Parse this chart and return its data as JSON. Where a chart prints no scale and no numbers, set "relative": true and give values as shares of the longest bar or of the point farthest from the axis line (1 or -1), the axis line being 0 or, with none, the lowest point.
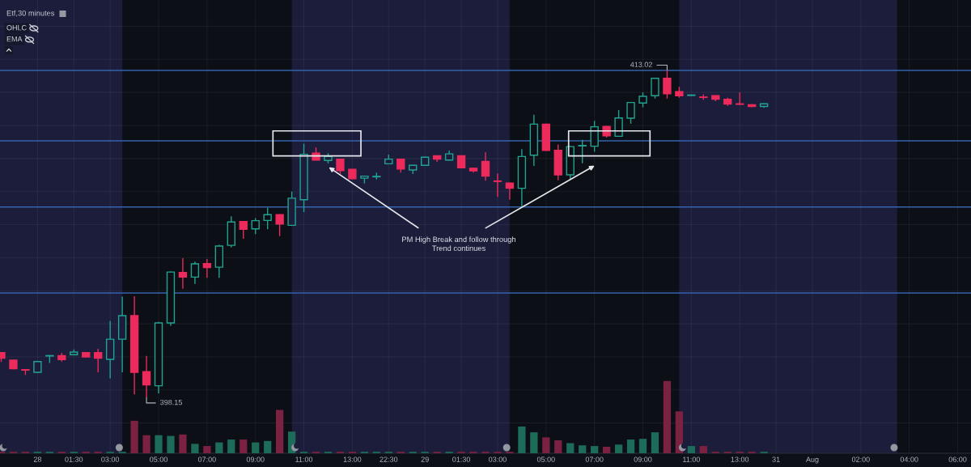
{
  "chart_data": [
    {
      "type": "candlestick",
      "title": "Etf,30 minutes",
      "categories": [
        null,
        null,
        null,
        "28",
        null,
        null,
        "01:30",
        null,
        null,
        "03:00",
        null,
        null,
        null,
        "05:00",
        null,
        null,
        null,
        "07:00",
        null,
        null,
        null,
        "09:00",
        null,
        null,
        null,
        "11:00",
        null,
        null,
        null,
        "13:00",
        null,
        null,
        "22:30",
        null,
        null,
        "29",
        null,
        null,
        "01:30",
        null,
        null,
        "03:00",
        null,
        null,
        null,
        "05:00",
        null,
        null,
        null,
        "07:00",
        null,
        null,
        null,
        "09:00",
        null,
        null,
        null,
        "11:00",
        null,
        null,
        null,
        "13:00",
        null,
        null,
        "31",
        null,
        null,
        "Aug",
        null,
        null,
        null,
        "02:00",
        null,
        null,
        null,
        "04:00",
        null,
        null,
        null,
        "06:00"
      ],
      "ohlc": [
        [
          400.19,
          400.2,
          399.77,
          399.94
        ],
        [
          399.85,
          399.87,
          399.44,
          399.46
        ],
        [
          399.42,
          399.43,
          399.18,
          399.4
        ],
        [
          399.3,
          399.82,
          399.27,
          399.79
        ],
        [
          400.04,
          400.07,
          399.73,
          400.06
        ],
        [
          400.06,
          400.18,
          399.79,
          399.88
        ],
        [
          400.1,
          400.34,
          400.08,
          400.22
        ],
        [
          400.19,
          400.21,
          399.98,
          400.0
        ],
        [
          400.19,
          400.37,
          399.3,
          399.94
        ],
        [
          399.89,
          401.63,
          399.03,
          400.8
        ],
        [
          400.8,
          402.73,
          399.3,
          401.87
        ],
        [
          401.87,
          402.75,
          398.3,
          399.3
        ],
        [
          399.33,
          400.04,
          398.15,
          398.73
        ],
        [
          398.69,
          401.59,
          398.35,
          401.54
        ],
        [
          401.54,
          403.87,
          401.41,
          403.85
        ],
        [
          403.83,
          404.48,
          403.09,
          403.62
        ],
        [
          403.62,
          404.32,
          403.31,
          404.22
        ],
        [
          404.23,
          404.44,
          403.59,
          404.05
        ],
        [
          404.07,
          405.08,
          403.59,
          405.03
        ],
        [
          405.06,
          406.38,
          404.96,
          406.12
        ],
        [
          406.14,
          406.16,
          405.36,
          405.79
        ],
        [
          405.81,
          406.3,
          405.57,
          406.18
        ],
        [
          406.19,
          406.77,
          405.79,
          406.45
        ],
        [
          406.45,
          406.47,
          405.48,
          406.03
        ],
        [
          405.97,
          407.5,
          405.94,
          407.2
        ],
        [
          407.13,
          409.67,
          406.57,
          409.19
        ],
        [
          409.24,
          409.5,
          408.91,
          408.93
        ],
        [
          408.91,
          409.24,
          408.78,
          409.09
        ],
        [
          408.97,
          408.99,
          408.3,
          408.45
        ],
        [
          408.51,
          408.53,
          408.06,
          408.08
        ],
        [
          408.11,
          408.22,
          407.87,
          408.2
        ],
        [
          408.17,
          408.36,
          408.05,
          408.19
        ],
        [
          408.76,
          409.18,
          408.74,
          408.97
        ],
        [
          408.97,
          408.99,
          408.36,
          408.52
        ],
        [
          408.48,
          408.71,
          408.3,
          408.69
        ],
        [
          408.69,
          409.08,
          408.67,
          409.06
        ],
        [
          409.12,
          409.14,
          408.85,
          408.97
        ],
        [
          408.93,
          409.36,
          408.91,
          409.21
        ],
        [
          409.12,
          409.14,
          408.56,
          408.58
        ],
        [
          408.56,
          408.58,
          408.36,
          408.44
        ],
        [
          408.87,
          409.28,
          407.99,
          408.2
        ],
        [
          407.98,
          408.32,
          407.26,
          407.96
        ],
        [
          407.89,
          407.91,
          407.13,
          407.65
        ],
        [
          407.65,
          409.43,
          406.83,
          409.09
        ],
        [
          409.15,
          410.99,
          408.66,
          410.56
        ],
        [
          410.56,
          410.58,
          409.35,
          409.37
        ],
        [
          409.37,
          409.64,
          408.01,
          408.26
        ],
        [
          408.26,
          409.56,
          408.05,
          409.54
        ],
        [
          409.57,
          409.85,
          408.78,
          409.59
        ],
        [
          409.56,
          410.71,
          409.31,
          410.44
        ],
        [
          410.46,
          410.48,
          409.95,
          410.03
        ],
        [
          410.01,
          411.2,
          409.99,
          410.84
        ],
        [
          410.83,
          411.56,
          410.58,
          411.54
        ],
        [
          411.52,
          412.0,
          411.32,
          411.82
        ],
        [
          411.85,
          412.66,
          411.72,
          412.64
        ],
        [
          412.64,
          413.02,
          411.72,
          411.94
        ],
        [
          412.03,
          412.25,
          411.76,
          411.85
        ],
        [
          411.86,
          411.9,
          411.84,
          411.88
        ],
        [
          411.79,
          411.91,
          411.66,
          411.77
        ],
        [
          411.85,
          411.87,
          411.6,
          411.69
        ],
        [
          411.69,
          411.76,
          411.39,
          411.47
        ],
        [
          411.48,
          412.0,
          411.42,
          411.46
        ],
        [
          411.44,
          411.46,
          411.33,
          411.36
        ],
        [
          411.36,
          411.5,
          411.3,
          411.48
        ],
        null,
        null,
        null,
        null,
        null,
        null,
        null,
        null,
        null,
        null,
        null,
        null,
        null,
        null,
        null,
        null
      ],
      "colors": [
        "#ec2a5c",
        "#ec2a5c",
        "#ec2a5c",
        "#22a38f",
        "#22a38f",
        "#ec2a5c",
        "#22a38f",
        "#ec2a5c",
        "#ec2a5c",
        "#22a38f",
        "#22a38f",
        "#ec2a5c",
        "#ec2a5c",
        "#22a38f",
        "#22a38f",
        "#ec2a5c",
        "#22a38f",
        "#ec2a5c",
        "#22a38f",
        "#22a38f",
        "#ec2a5c",
        "#22a38f",
        "#22a38f",
        "#ec2a5c",
        "#22a38f",
        "#22a38f",
        "#ec2a5c",
        "#22a38f",
        "#ec2a5c",
        "#ec2a5c",
        "#22a38f",
        "#22a38f",
        "#22a38f",
        "#ec2a5c",
        "#22a38f",
        "#22a38f",
        "#ec2a5c",
        "#22a38f",
        "#ec2a5c",
        "#ec2a5c",
        "#ec2a5c",
        "#ec2a5c",
        "#ec2a5c",
        "#22a38f",
        "#22a38f",
        "#ec2a5c",
        "#ec2a5c",
        "#22a38f",
        "#22a38f",
        "#22a38f",
        "#ec2a5c",
        "#22a38f",
        "#22a38f",
        "#22a38f",
        "#22a38f",
        "#ec2a5c",
        "#ec2a5c",
        "#22a38f",
        "#ec2a5c",
        "#ec2a5c",
        "#ec2a5c",
        "#ec2a5c",
        "#ec2a5c",
        "#22a38f",
        null,
        null,
        null,
        null,
        null,
        null,
        null,
        null,
        null,
        null,
        null,
        null,
        null,
        null,
        null,
        null
      ],
      "yticks": [
        {
          "value": 397,
          "label": null
        },
        {
          "value": 398.5,
          "label": null
        },
        {
          "value": 400,
          "label": null
        },
        {
          "value": 401.5,
          "label": null
        },
        {
          "value": 403,
          "label": null
        },
        {
          "value": 404.5,
          "label": null
        },
        {
          "value": 406,
          "label": null
        },
        {
          "value": 407.5,
          "label": null
        },
        {
          "value": 409,
          "label": null
        },
        {
          "value": 410.5,
          "label": null
        },
        {
          "value": 412,
          "label": null
        },
        {
          "value": 413.5,
          "label": null
        },
        {
          "value": 415,
          "label": null
        }
      ],
      "tick_labels": "x",
      "grid": true,
      "ref_lines": [
        {
          "axis": "y",
          "value": 413.0,
          "color": "#3563ad"
        },
        {
          "axis": "y",
          "value": 409.8,
          "color": "#3563ad"
        },
        {
          "axis": "y",
          "value": 406.8,
          "color": "#3563ad"
        },
        {
          "axis": "y",
          "value": 402.9,
          "color": "#3563ad"
        }
      ],
      "annotations": [
        "OHLC",
        "EMA",
        "PM High Break and follow through\nTrend continues",
        "398.15",
        {
          "text": "413.02",
          "y": 413.02
        }
      ]
    },
    {
      "type": "bar",
      "relative": true,
      "tick_labels": false,
      "categories": [
        null,
        null,
        null,
        null,
        null,
        null,
        null,
        null,
        null,
        null,
        null,
        null,
        null,
        null,
        null,
        null,
        null,
        null,
        null,
        null,
        null,
        null,
        null,
        null,
        null,
        null,
        null,
        null,
        null,
        null,
        null,
        null,
        null,
        null,
        null,
        null,
        null,
        null,
        null,
        null,
        null,
        null,
        null,
        null,
        null,
        null,
        null,
        null,
        null,
        null,
        null,
        null,
        null,
        null,
        null,
        null,
        null,
        null,
        null,
        null,
        null,
        null,
        null,
        null,
        null,
        null,
        null,
        null,
        null,
        null,
        null,
        null,
        null,
        null,
        null,
        null,
        null,
        null,
        null,
        null
      ],
      "values": [
        0.02,
        0.02,
        0.02,
        0.02,
        0.02,
        0.02,
        0.02,
        0.02,
        0.02,
        0.02,
        0.02,
        0.45,
        0.25,
        0.25,
        0.24,
        0.26,
        0.13,
        0.1,
        0.15,
        0.19,
        0.19,
        0.15,
        0.17,
        0.6,
        0.3,
        0.02,
        0.02,
        0.02,
        0.02,
        0.02,
        0.02,
        0.02,
        0.02,
        0.02,
        0.02,
        0.02,
        0.02,
        0.02,
        0.02,
        0.02,
        0.02,
        0.02,
        0.02,
        0.37,
        0.29,
        0.22,
        0.18,
        0.14,
        0.11,
        0.1,
        0.09,
        0.12,
        0.19,
        0.2,
        0.29,
        1,
        0.58,
        0.1,
        0.1,
        0.02,
        0.02,
        0.02,
        0.02,
        0.02,
        null,
        null,
        null,
        null,
        null,
        null,
        null,
        null,
        null,
        null,
        null,
        null,
        null,
        null,
        null,
        null
      ],
      "colors": [
        "#7b2142",
        "#7b2142",
        "#7b2142",
        "#1d6b59",
        "#1d6b59",
        "#7b2142",
        "#1d6b59",
        "#7b2142",
        "#7b2142",
        "#1d6b59",
        "#1d6b59",
        "#7b2142",
        "#7b2142",
        "#1d6b59",
        "#1d6b59",
        "#7b2142",
        "#1d6b59",
        "#7b2142",
        "#1d6b59",
        "#1d6b59",
        "#7b2142",
        "#1d6b59",
        "#1d6b59",
        "#7b2142",
        "#1d6b59",
        "#1d6b59",
        "#7b2142",
        "#1d6b59",
        "#7b2142",
        "#7b2142",
        "#1d6b59",
        "#1d6b59",
        "#1d6b59",
        "#7b2142",
        "#1d6b59",
        "#1d6b59",
        "#7b2142",
        "#1d6b59",
        "#7b2142",
        "#7b2142",
        "#7b2142",
        "#7b2142",
        "#7b2142",
        "#1d6b59",
        "#1d6b59",
        "#7b2142",
        "#7b2142",
        "#1d6b59",
        "#1d6b59",
        "#1d6b59",
        "#7b2142",
        "#1d6b59",
        "#1d6b59",
        "#1d6b59",
        "#1d6b59",
        "#7b2142",
        "#7b2142",
        "#1d6b59",
        "#7b2142",
        "#7b2142",
        "#7b2142",
        "#7b2142",
        "#7b2142",
        "#1d6b59",
        null,
        null,
        null,
        null,
        null,
        null,
        null,
        null,
        null,
        null,
        null,
        null,
        null,
        null,
        null,
        null
      ]
    }
  ]
}
